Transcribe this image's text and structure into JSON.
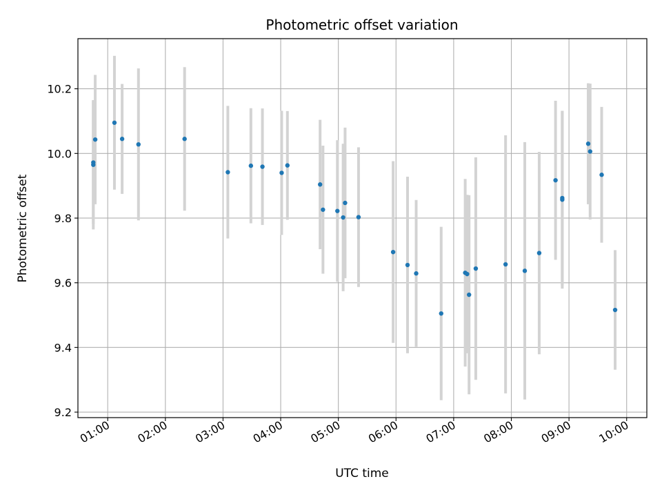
{
  "chart_data": {
    "type": "scatter",
    "title": "Photometric offset variation",
    "xlabel": "UTC time",
    "ylabel": "Photometric offset",
    "x_tick_labels": [
      "01:00",
      "02:00",
      "03:00",
      "04:00",
      "05:00",
      "06:00",
      "07:00",
      "08:00",
      "09:00",
      "10:00"
    ],
    "y_ticks": [
      9.2,
      9.4,
      9.6,
      9.8,
      10.0,
      10.2
    ],
    "y_tick_labels": [
      "9.2",
      "9.4",
      "9.6",
      "9.8",
      "10.0",
      "10.2"
    ],
    "xlim": [
      "00:29",
      "10:21"
    ],
    "ylim": [
      9.183,
      10.355
    ],
    "grid": true,
    "colors": {
      "point": "#1f77b4",
      "errorbar": "#d3d3d3",
      "grid": "#b0b0b0"
    },
    "series": [
      {
        "points": [
          {
            "x": "00:45",
            "y": 9.965,
            "err": 0.2
          },
          {
            "x": "00:45",
            "y": 9.972,
            "err": 0.19
          },
          {
            "x": "00:47",
            "y": 10.043,
            "err": 0.2
          },
          {
            "x": "01:07",
            "y": 10.095,
            "err": 0.207
          },
          {
            "x": "01:15",
            "y": 10.045,
            "err": 0.17
          },
          {
            "x": "01:32",
            "y": 10.028,
            "err": 0.235
          },
          {
            "x": "02:20",
            "y": 10.045,
            "err": 0.222
          },
          {
            "x": "03:05",
            "y": 9.942,
            "err": 0.205
          },
          {
            "x": "03:29",
            "y": 9.962,
            "err": 0.178
          },
          {
            "x": "03:41",
            "y": 9.959,
            "err": 0.18
          },
          {
            "x": "04:01",
            "y": 9.94,
            "err": 0.192
          },
          {
            "x": "04:07",
            "y": 9.963,
            "err": 0.168
          },
          {
            "x": "04:41",
            "y": 9.904,
            "err": 0.2
          },
          {
            "x": "04:44",
            "y": 9.826,
            "err": 0.198
          },
          {
            "x": "04:59",
            "y": 9.822,
            "err": 0.219
          },
          {
            "x": "05:05",
            "y": 9.802,
            "err": 0.228
          },
          {
            "x": "05:07",
            "y": 9.847,
            "err": 0.233
          },
          {
            "x": "05:21",
            "y": 9.803,
            "err": 0.216
          },
          {
            "x": "05:57",
            "y": 9.695,
            "err": 0.281
          },
          {
            "x": "06:12",
            "y": 9.655,
            "err": 0.273
          },
          {
            "x": "06:21",
            "y": 9.629,
            "err": 0.227
          },
          {
            "x": "06:47",
            "y": 9.505,
            "err": 0.268
          },
          {
            "x": "07:12",
            "y": 9.631,
            "err": 0.29
          },
          {
            "x": "07:14",
            "y": 9.627,
            "err": 0.245
          },
          {
            "x": "07:16",
            "y": 9.563,
            "err": 0.308
          },
          {
            "x": "07:23",
            "y": 9.644,
            "err": 0.344
          },
          {
            "x": "07:54",
            "y": 9.657,
            "err": 0.399
          },
          {
            "x": "08:14",
            "y": 9.637,
            "err": 0.398
          },
          {
            "x": "08:29",
            "y": 9.692,
            "err": 0.313
          },
          {
            "x": "08:46",
            "y": 9.917,
            "err": 0.246
          },
          {
            "x": "08:53",
            "y": 9.857,
            "err": 0.275
          },
          {
            "x": "08:53",
            "y": 9.862,
            "err": 0.27
          },
          {
            "x": "09:20",
            "y": 10.03,
            "err": 0.187
          },
          {
            "x": "09:22",
            "y": 10.006,
            "err": 0.21
          },
          {
            "x": "09:34",
            "y": 9.934,
            "err": 0.21
          },
          {
            "x": "09:48",
            "y": 9.516,
            "err": 0.185
          }
        ]
      }
    ]
  }
}
